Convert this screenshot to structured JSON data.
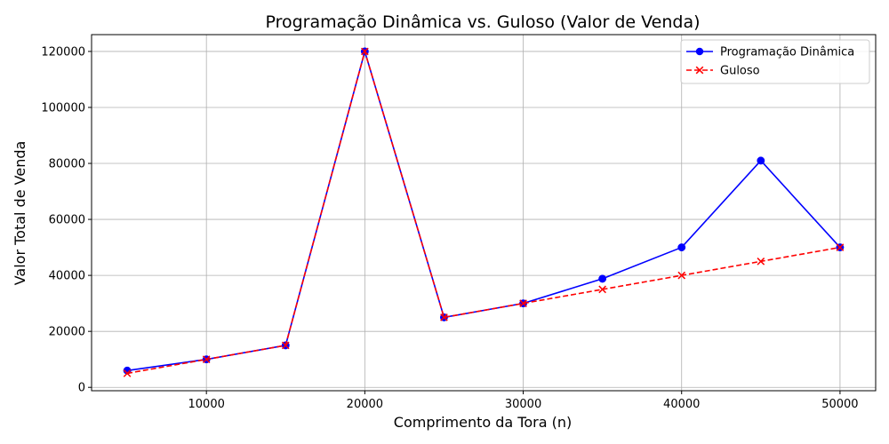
{
  "chart_data": {
    "type": "line",
    "title": "Programação Dinâmica vs. Guloso (Valor de Venda)",
    "xlabel": "Comprimento da Tora (n)",
    "ylabel": "Valor Total de Venda",
    "xlim": [
      2750,
      52250
    ],
    "ylim": [
      -1200,
      126000
    ],
    "x_ticks": [
      10000,
      20000,
      30000,
      40000,
      50000
    ],
    "x_tick_labels": [
      "10000",
      "20000",
      "30000",
      "40000",
      "50000"
    ],
    "y_ticks": [
      0,
      20000,
      40000,
      60000,
      80000,
      100000,
      120000
    ],
    "y_tick_labels": [
      "0",
      "20000",
      "40000",
      "60000",
      "80000",
      "100000",
      "120000"
    ],
    "grid": true,
    "legend_position": "top-right",
    "x": [
      5000,
      10000,
      15000,
      20000,
      25000,
      30000,
      35000,
      40000,
      45000,
      50000
    ],
    "series": [
      {
        "name": "Programação Dinâmica",
        "values": [
          6000,
          10000,
          15000,
          120000,
          25000,
          30000,
          38800,
          50000,
          81000,
          50000
        ],
        "color": "#0000ff",
        "marker": "circle",
        "line_style": "solid"
      },
      {
        "name": "Guloso",
        "values": [
          5000,
          10000,
          15000,
          120000,
          25000,
          30000,
          35000,
          40000,
          45000,
          50000
        ],
        "color": "#ff0000",
        "marker": "x",
        "line_style": "dashed"
      }
    ]
  }
}
